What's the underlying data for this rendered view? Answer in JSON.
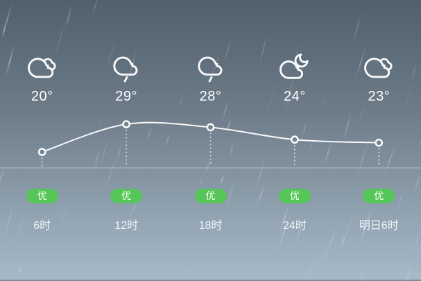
{
  "colors": {
    "badge_green": "#55c657",
    "background_top": "#52606d",
    "background_bottom": "#a8bac8",
    "line_white": "#ffffff",
    "point_fill": "#75848f",
    "icon_occluder_fill": "#64737f"
  },
  "columns": [
    {
      "time": "6时",
      "temp_label": "20°",
      "aqi_label": "优",
      "icon": "overcast-clouds-icon"
    },
    {
      "time": "12时",
      "temp_label": "29°",
      "aqi_label": "优",
      "icon": "light-rain-icon"
    },
    {
      "time": "18时",
      "temp_label": "28°",
      "aqi_label": "优",
      "icon": "light-rain-icon"
    },
    {
      "time": "24时",
      "temp_label": "24°",
      "aqi_label": "优",
      "icon": "cloudy-night-icon"
    },
    {
      "time": "明日6时",
      "temp_label": "23°",
      "aqi_label": "优",
      "icon": "overcast-clouds-icon"
    }
  ],
  "chart_data": {
    "type": "line",
    "x": [
      "6时",
      "12时",
      "18时",
      "24时",
      "明日6时"
    ],
    "series": [
      {
        "name": "temperature",
        "values": [
          20,
          29,
          28,
          24,
          23
        ]
      }
    ],
    "unit": "°",
    "grid": false,
    "legend": false,
    "point_markers": "hollow-circle",
    "drop_lines": "dotted-to-baseline"
  }
}
